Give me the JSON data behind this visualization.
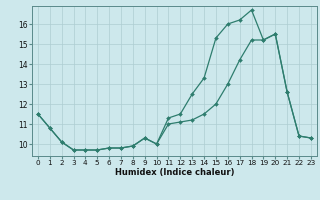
{
  "series1_x": [
    0,
    1,
    2,
    3,
    4,
    5,
    6,
    7,
    8,
    9,
    10,
    11,
    12,
    13,
    14,
    15,
    16,
    17,
    18,
    19,
    20,
    21,
    22,
    23
  ],
  "series1_y": [
    11.5,
    10.8,
    10.1,
    9.7,
    9.7,
    9.7,
    9.8,
    9.8,
    9.9,
    10.3,
    10.0,
    11.3,
    11.5,
    12.5,
    13.3,
    15.3,
    16.0,
    16.2,
    16.7,
    15.2,
    15.5,
    12.6,
    10.4,
    10.3
  ],
  "series2_x": [
    0,
    1,
    2,
    3,
    4,
    5,
    6,
    7,
    8,
    9,
    10,
    11,
    12,
    13,
    14,
    15,
    16,
    17,
    18,
    19,
    20,
    21,
    22,
    23
  ],
  "series2_y": [
    11.5,
    10.8,
    10.1,
    9.7,
    9.7,
    9.7,
    9.8,
    9.8,
    9.9,
    10.3,
    10.0,
    11.0,
    11.1,
    11.2,
    11.5,
    12.0,
    13.0,
    14.2,
    15.2,
    15.2,
    15.5,
    12.6,
    10.4,
    10.3
  ],
  "color": "#2e7d6e",
  "bg_color": "#cde8ec",
  "grid_color": "#aecdd2",
  "xlabel": "Humidex (Indice chaleur)",
  "ylim": [
    9.4,
    16.9
  ],
  "xlim": [
    -0.5,
    23.5
  ],
  "yticks": [
    10,
    11,
    12,
    13,
    14,
    15,
    16
  ],
  "xticks": [
    0,
    1,
    2,
    3,
    4,
    5,
    6,
    7,
    8,
    9,
    10,
    11,
    12,
    13,
    14,
    15,
    16,
    17,
    18,
    19,
    20,
    21,
    22,
    23
  ],
  "xlabel_fontsize": 6.0,
  "tick_fontsize": 5.2,
  "linewidth": 0.9,
  "markersize": 2.0
}
